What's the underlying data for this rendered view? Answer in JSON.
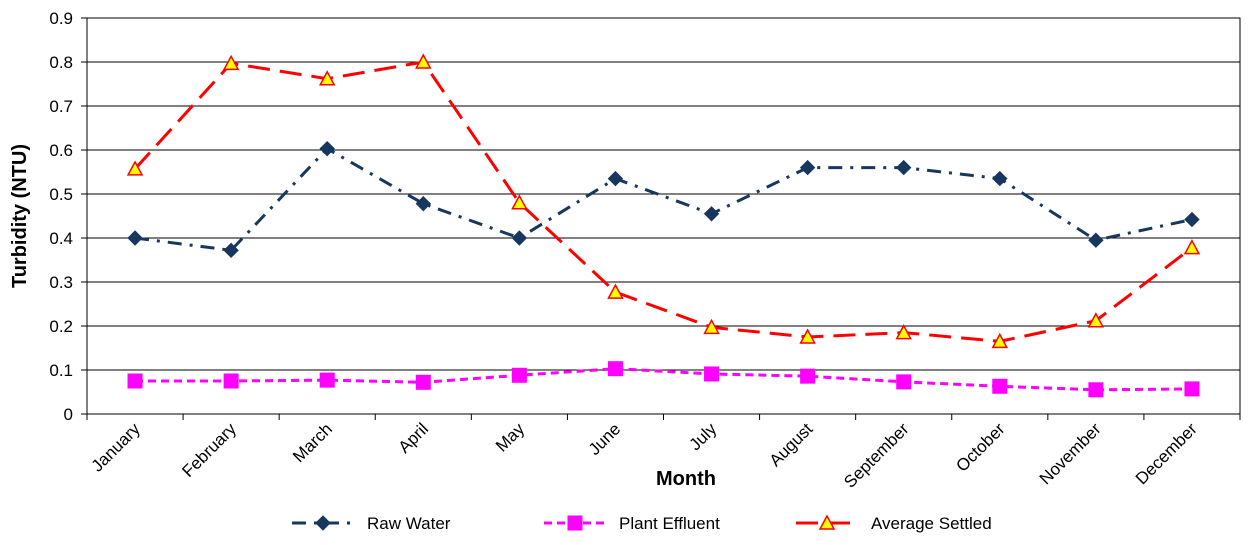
{
  "chart_data": {
    "type": "line",
    "x_label": "Month",
    "y_label": "Turbidity (NTU)",
    "categories": [
      "January",
      "February",
      "March",
      "April",
      "May",
      "June",
      "July",
      "August",
      "September",
      "October",
      "November",
      "December"
    ],
    "series": [
      {
        "name": "Raw Water",
        "color": "#17375e",
        "marker": "diamond",
        "dash": "dash-dot",
        "values": [
          0.4,
          0.372,
          0.603,
          0.478,
          0.4,
          0.535,
          0.455,
          0.56,
          0.56,
          0.535,
          0.395,
          0.442
        ]
      },
      {
        "name": "Plant Effluent",
        "color": "#ff00ff",
        "marker": "square",
        "dash": "dash",
        "values": [
          0.075,
          0.075,
          0.077,
          0.072,
          0.088,
          0.103,
          0.091,
          0.086,
          0.073,
          0.063,
          0.055,
          0.057
        ]
      },
      {
        "name": "Average Settled",
        "color": "#ff0000",
        "marker": "triangle",
        "dash": "long-dash",
        "values": [
          0.557,
          0.797,
          0.762,
          0.8,
          0.48,
          0.277,
          0.197,
          0.175,
          0.185,
          0.165,
          0.212,
          0.378
        ]
      }
    ],
    "ylim": [
      0,
      0.9
    ],
    "yticks": [
      0,
      0.1,
      0.2,
      0.3,
      0.4,
      0.5,
      0.6,
      0.7,
      0.8,
      0.9
    ],
    "grid": true,
    "legend": "bottom"
  }
}
